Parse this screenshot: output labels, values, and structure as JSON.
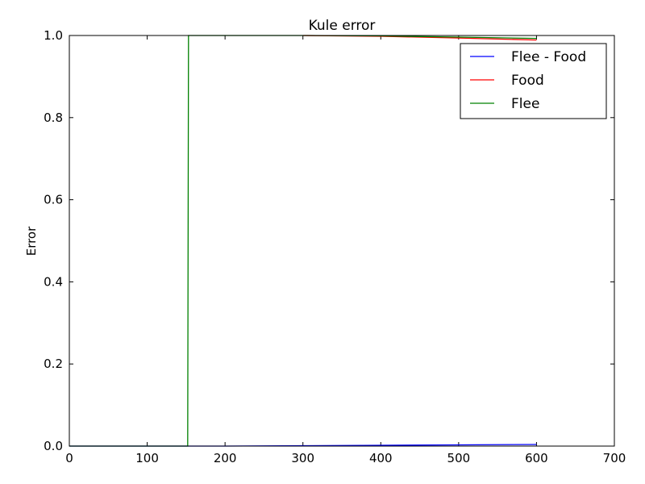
{
  "chart_data": {
    "type": "line",
    "title": "Kule error",
    "xlabel": "",
    "ylabel": "Error",
    "xlim": [
      0,
      700
    ],
    "ylim": [
      0,
      1
    ],
    "xticks": [
      0,
      100,
      200,
      300,
      400,
      500,
      600,
      700
    ],
    "yticks": [
      0,
      0.2,
      0.4,
      0.6,
      0.8,
      1.0
    ],
    "xtick_labels": [
      "0",
      "100",
      "200",
      "300",
      "400",
      "500",
      "600",
      "700"
    ],
    "ytick_labels": [
      "0.0",
      "0.2",
      "0.4",
      "0.6",
      "0.8",
      "1.0"
    ],
    "grid": false,
    "legend_position": "top-right",
    "series": [
      {
        "name": "Flee - Food",
        "color": "#0000ff",
        "x": [
          0,
          150,
          200,
          300,
          400,
          500,
          600
        ],
        "y": [
          0,
          0,
          0,
          0.001,
          0.002,
          0.003,
          0.004
        ]
      },
      {
        "name": "Food",
        "color": "#ff0000",
        "x": [
          300,
          400,
          500,
          600
        ],
        "y": [
          1.0,
          0.998,
          0.994,
          0.989
        ]
      },
      {
        "name": "Flee",
        "color": "#008000",
        "x": [
          0,
          150,
          152,
          153,
          300,
          400,
          500,
          600
        ],
        "y": [
          0,
          0,
          0,
          1.0,
          1.0,
          0.999,
          0.996,
          0.993
        ]
      }
    ]
  }
}
